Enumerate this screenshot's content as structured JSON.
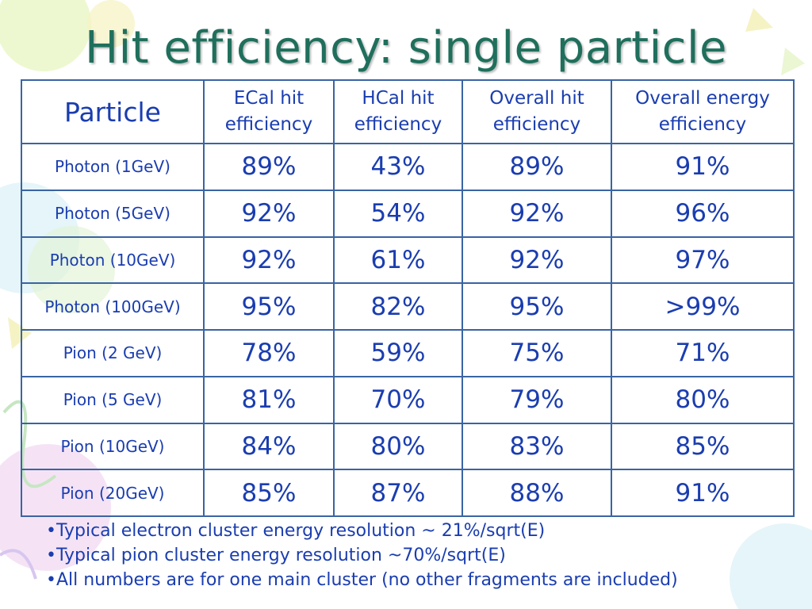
{
  "title": "Hit efficiency: single particle",
  "table": {
    "headers": [
      "Particle",
      "ECal hit efficiency",
      "HCal hit efficiency",
      "Overall hit efficiency",
      "Overall energy efficiency"
    ],
    "rows": [
      {
        "particle": "Photon (1GeV)",
        "ecal": "89%",
        "hcal": "43%",
        "overall_hit": "89%",
        "overall_energy": "91%"
      },
      {
        "particle": "Photon (5GeV)",
        "ecal": "92%",
        "hcal": "54%",
        "overall_hit": "92%",
        "overall_energy": "96%"
      },
      {
        "particle": "Photon (10GeV)",
        "ecal": "92%",
        "hcal": "61%",
        "overall_hit": "92%",
        "overall_energy": "97%"
      },
      {
        "particle": "Photon (100GeV)",
        "ecal": "95%",
        "hcal": "82%",
        "overall_hit": "95%",
        "overall_energy": ">99%"
      },
      {
        "particle": "Pion (2 GeV)",
        "ecal": "78%",
        "hcal": "59%",
        "overall_hit": "75%",
        "overall_energy": "71%"
      },
      {
        "particle": "Pion (5 GeV)",
        "ecal": "81%",
        "hcal": "70%",
        "overall_hit": "79%",
        "overall_energy": "80%"
      },
      {
        "particle": "Pion (10GeV)",
        "ecal": "84%",
        "hcal": "80%",
        "overall_hit": "83%",
        "overall_energy": "85%"
      },
      {
        "particle": "Pion (20GeV)",
        "ecal": "85%",
        "hcal": "87%",
        "overall_hit": "88%",
        "overall_energy": "91%"
      }
    ]
  },
  "notes": [
    "•Typical electron cluster energy resolution ~ 21%/sqrt(E)",
    "•Typical pion cluster energy resolution ~70%/sqrt(E)",
    "•All numbers are for one main cluster (no other fragments are included)"
  ],
  "colors": {
    "title": "#1f6f5c",
    "table_text": "#1a3db0",
    "table_border": "#3a64a3"
  }
}
